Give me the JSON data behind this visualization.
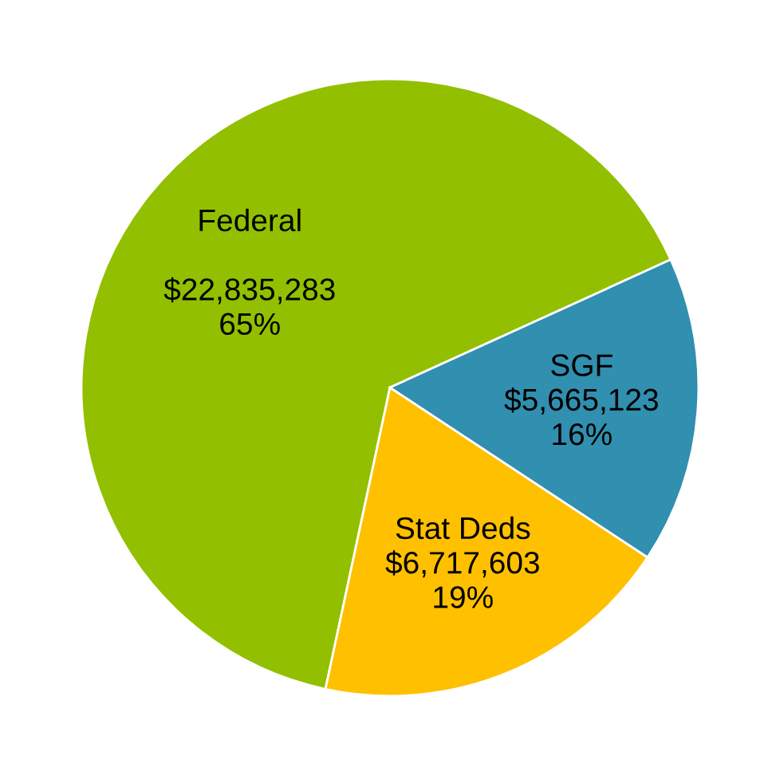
{
  "chart_data": {
    "type": "pie",
    "categories": [
      "Federal",
      "Stat Deds",
      "SGF"
    ],
    "values": [
      22835283,
      6717603,
      5665123
    ],
    "colors": [
      "#92c000",
      "#ffc000",
      "#318fb0"
    ],
    "value_labels": [
      "$22,835,283\n65%",
      "$6,717,603\n19%",
      "$5,665,123\n16%"
    ]
  }
}
